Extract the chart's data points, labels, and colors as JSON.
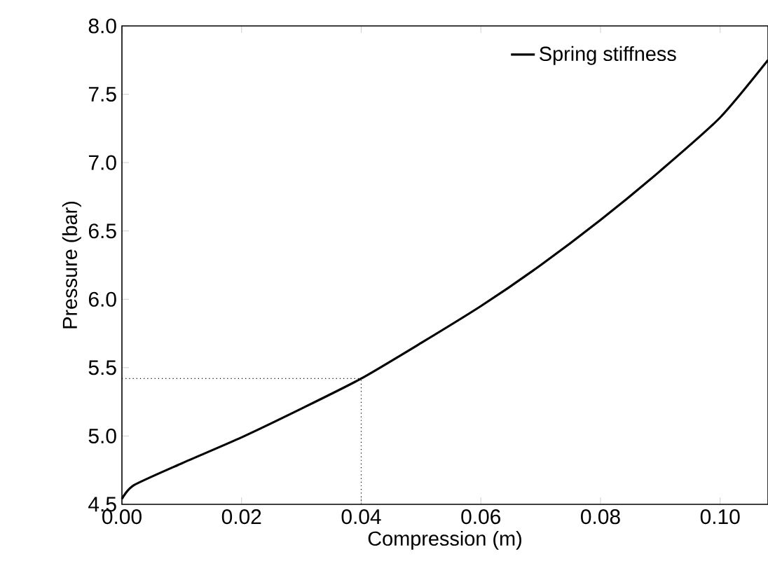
{
  "chart_data": {
    "type": "line",
    "xlabel": "Compression (m)",
    "ylabel": "Pressure (bar)",
    "x": [
      0,
      0.002,
      0.01,
      0.02,
      0.03,
      0.04,
      0.05,
      0.06,
      0.07,
      0.08,
      0.09,
      0.1,
      0.108
    ],
    "series": [
      {
        "name": "Spring stiffness",
        "color": "#000000",
        "values": [
          4.54,
          4.64,
          4.8,
          4.99,
          5.2,
          5.42,
          5.68,
          5.95,
          6.25,
          6.58,
          6.94,
          7.33,
          7.75
        ]
      }
    ],
    "xlim": [
      0,
      0.108
    ],
    "ylim": [
      4.5,
      8.0
    ],
    "xticks": [
      {
        "value": 0,
        "label": "0.00"
      },
      {
        "value": 0.02,
        "label": "0.02"
      },
      {
        "value": 0.04,
        "label": "0.04"
      },
      {
        "value": 0.06,
        "label": "0.06"
      },
      {
        "value": 0.08,
        "label": "0.08"
      },
      {
        "value": 0.1,
        "label": "0.10"
      }
    ],
    "yticks": [
      {
        "value": 4.5,
        "label": "4.5"
      },
      {
        "value": 5,
        "label": "5.0"
      },
      {
        "value": 5.5,
        "label": "5.5"
      },
      {
        "value": 6,
        "label": "6.0"
      },
      {
        "value": 6.5,
        "label": "6.5"
      },
      {
        "value": 7,
        "label": "7.0"
      },
      {
        "value": 7.5,
        "label": "7.5"
      },
      {
        "value": 8,
        "label": "8.0"
      }
    ],
    "ref_lines": [
      {
        "axis": "x",
        "value": 0.04,
        "line_style": "dotted"
      },
      {
        "axis": "y",
        "value": 5.42,
        "line_style": "dotted"
      }
    ],
    "legend": "top right",
    "marker": "none",
    "line_style": "solid",
    "grid": false
  }
}
